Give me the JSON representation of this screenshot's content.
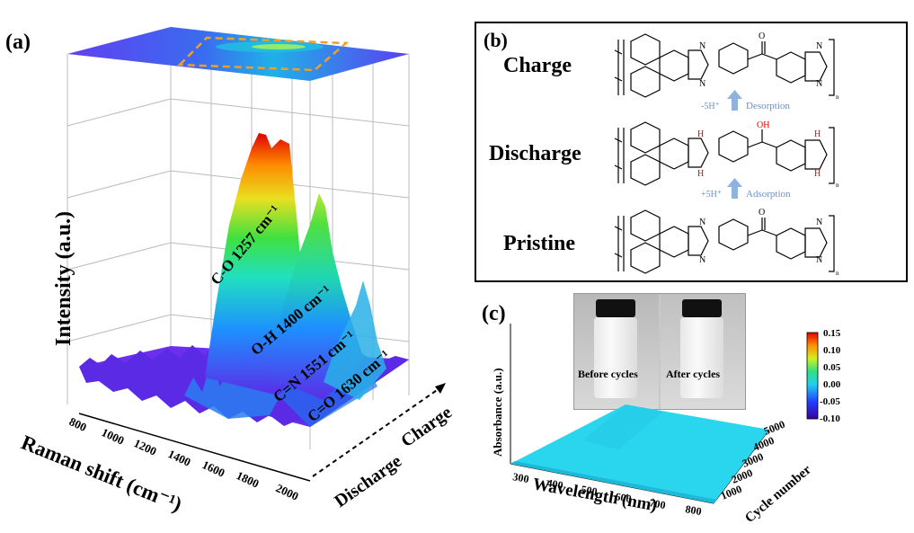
{
  "figure": {
    "panel_a": {
      "label": "(a)",
      "y_axis_label": "Intensity (a.u.)",
      "x_axis_label": "Raman shift (cm⁻¹)",
      "x_ticks": [
        "800",
        "1000",
        "1200",
        "1400",
        "1600",
        "1800",
        "2000"
      ],
      "depth_labels": [
        "Discharge",
        "Charge"
      ],
      "peaks": [
        {
          "label": "C-O 1257 cm⁻¹",
          "position_cm": 1257
        },
        {
          "label": "O-H 1400 cm⁻¹",
          "position_cm": 1400
        },
        {
          "label": "C=N 1551 cm⁻¹",
          "position_cm": 1551
        },
        {
          "label": "C=O 1630 cm⁻¹",
          "position_cm": 1630
        }
      ],
      "colors": {
        "top_plane": "#5b3df0",
        "surface_low": "#6a2cf0",
        "peak_high": "#e00000"
      }
    },
    "panel_b": {
      "label": "(b)",
      "states": [
        "Charge",
        "Discharge",
        "Pristine"
      ],
      "transitions": [
        {
          "reagent": "-5H⁺",
          "process": "Desorption"
        },
        {
          "reagent": "+5H⁺",
          "process": "Adsorption"
        }
      ],
      "atoms": {
        "N": "N",
        "O": "O",
        "H": "H",
        "OH": "OH",
        "n": "n"
      },
      "arrow_color": "#8fb3de"
    },
    "panel_c": {
      "label": "(c)",
      "photo_labels": [
        "Before cycles",
        "After cycles"
      ],
      "x_axis_label": "Wavelength (nm)",
      "y_axis_label": "Absorbance (a.u.)",
      "z_axis_label": "Cycle number",
      "x_ticks": [
        "300",
        "400",
        "500",
        "600",
        "700",
        "800"
      ],
      "z_ticks": [
        "1000",
        "2000",
        "3000",
        "4000",
        "5000"
      ],
      "colorbar_ticks": [
        "0.15",
        "0.10",
        "0.05",
        "0.00",
        "-0.05",
        "-0.10"
      ],
      "surface_color": "#2ad6ee"
    }
  }
}
